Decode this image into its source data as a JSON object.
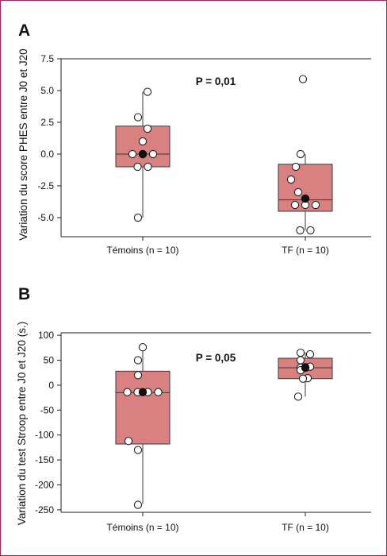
{
  "chart_data": [
    {
      "type": "box",
      "panel_label": "A",
      "ylabel": "Variation du score PHES entre J0 et J20",
      "annotation": "P = 0,01",
      "ylim": [
        -6.5,
        7.5
      ],
      "yticks": [
        7.5,
        5.0,
        2.5,
        0.0,
        -2.5,
        -5.0
      ],
      "ytick_labels": [
        "7.5",
        "5.0",
        "2.5",
        "0.0",
        "-2.5",
        "-5.0"
      ],
      "categories": [
        "Témoins (n = 10)",
        "TF (n = 10)"
      ],
      "boxes": [
        {
          "q1": -1.0,
          "median": 0.0,
          "q3": 2.2,
          "whisker_low": -5.0,
          "whisker_high": 4.9,
          "mean": 0.0,
          "points": [
            4.9,
            2.9,
            2.0,
            1.0,
            0.0,
            0.0,
            0.0,
            -1.0,
            -1.0,
            -5.0
          ]
        },
        {
          "q1": -4.5,
          "median": -3.6,
          "q3": -0.8,
          "whisker_low": -6.0,
          "whisker_high": 0.0,
          "mean": -3.5,
          "points": [
            5.9,
            0.0,
            -1.0,
            -2.0,
            -3.0,
            -4.0,
            -4.0,
            -4.0,
            -6.0,
            -6.0
          ]
        }
      ]
    },
    {
      "type": "box",
      "panel_label": "B",
      "ylabel": "Variation du test Stroop entre J0 et J20 (s.)",
      "annotation": "P = 0,05",
      "ylim": [
        -255,
        105
      ],
      "yticks": [
        100,
        50,
        0,
        -50,
        -100,
        -150,
        -200,
        -250
      ],
      "ytick_labels": [
        "100",
        "50",
        "0",
        "-50",
        "-100",
        "-150",
        "-200",
        "-250"
      ],
      "categories": [
        "Témoins (n = 10)",
        "TF (n = 10)"
      ],
      "boxes": [
        {
          "q1": -118,
          "median": -15,
          "q3": 28,
          "whisker_low": -238,
          "whisker_high": 73,
          "mean": -14,
          "points": [
            76,
            50,
            20,
            -14,
            -14,
            -14,
            -14,
            -112,
            -130,
            -240
          ]
        },
        {
          "q1": 13,
          "median": 35,
          "q3": 54,
          "whisker_low": -23,
          "whisker_high": 66,
          "mean": 35,
          "points": [
            65,
            62,
            50,
            37,
            36,
            35,
            30,
            14,
            13,
            -23
          ]
        }
      ]
    }
  ],
  "colors": {
    "box_fill": "#d98080",
    "box_stroke": "#3a3a3a",
    "frame": "#a0245a",
    "mean_marker": "#111111",
    "point_stroke": "#222222"
  }
}
